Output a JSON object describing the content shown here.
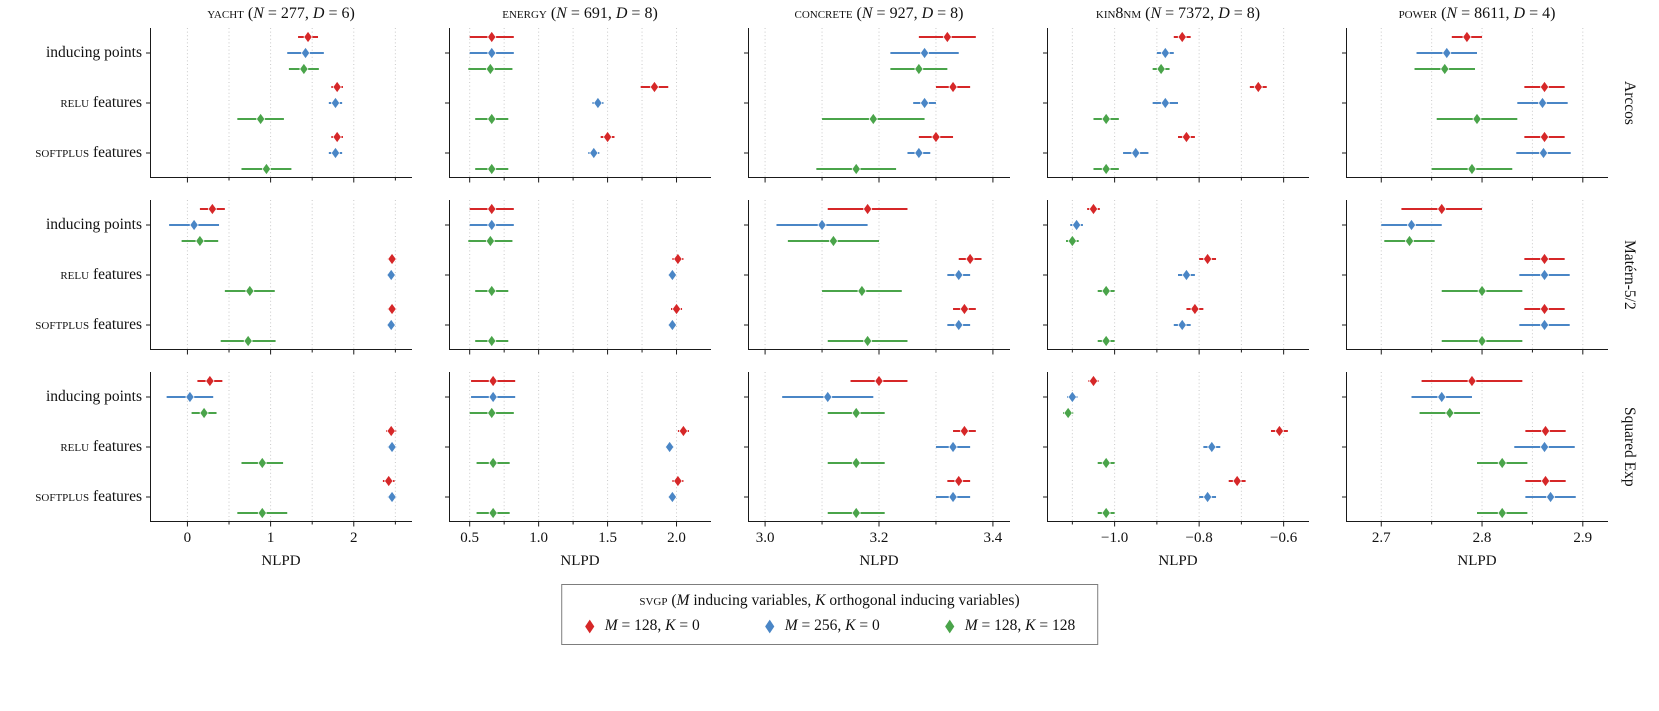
{
  "legend": {
    "title_sc": "svgp",
    "title_rest": " (M inducing variables, K orthogonal inducing variables)"
  },
  "chart_data": {
    "type": "scatter",
    "xlabel": "NLPD",
    "rows": [
      "Arccos",
      "Matérn-5/2",
      "Squared Exp"
    ],
    "group_labels": [
      [
        "",
        "inducing points"
      ],
      [
        "relu",
        " features"
      ],
      [
        "softplus",
        " features"
      ]
    ],
    "series": [
      {
        "name": "M = 128, K = 0",
        "color": "#d62728"
      },
      {
        "name": "M = 256, K = 0",
        "color": "#4a86c6"
      },
      {
        "name": "M = 128, K = 128",
        "color": "#4aa44a"
      }
    ],
    "columns": [
      {
        "name": "yacht",
        "params": "(N = 277, D = 6)",
        "xlim": [
          -0.45,
          2.7
        ],
        "ticks": [
          0,
          1,
          2
        ],
        "tick_labels": [
          "0",
          "1",
          "2"
        ],
        "grid": [
          0,
          0.5,
          1,
          1.5,
          2,
          2.5
        ]
      },
      {
        "name": "energy",
        "params": "(N = 691, D = 8)",
        "xlim": [
          0.35,
          2.25
        ],
        "ticks": [
          0.5,
          1.0,
          1.5,
          2.0
        ],
        "tick_labels": [
          "0.5",
          "1.0",
          "1.5",
          "2.0"
        ],
        "grid": [
          0.5,
          0.75,
          1.0,
          1.25,
          1.5,
          1.75,
          2.0
        ]
      },
      {
        "name": "concrete",
        "params": "(N = 927, D = 8)",
        "xlim": [
          2.97,
          3.43
        ],
        "ticks": [
          3.0,
          3.2,
          3.4
        ],
        "tick_labels": [
          "3.0",
          "3.2",
          "3.4"
        ],
        "grid": [
          3.0,
          3.1,
          3.2,
          3.3,
          3.4
        ]
      },
      {
        "name": "kin8nm",
        "params": "(N = 7372, D = 8)",
        "xlim": [
          -1.16,
          -0.54
        ],
        "ticks": [
          -1.0,
          -0.8,
          -0.6
        ],
        "tick_labels": [
          "−1.0",
          "−0.8",
          "−0.6"
        ],
        "grid": [
          -1.1,
          -1.0,
          -0.9,
          -0.8,
          -0.7,
          -0.6
        ]
      },
      {
        "name": "power",
        "params": "(N = 8611, D = 4)",
        "xlim": [
          2.665,
          2.925
        ],
        "ticks": [
          2.7,
          2.8,
          2.9
        ],
        "tick_labels": [
          "2.7",
          "2.8",
          "2.9"
        ],
        "grid": [
          2.7,
          2.75,
          2.8,
          2.85,
          2.9
        ]
      }
    ],
    "panels": [
      [
        [
          [
            [
              1.45,
              0.12
            ],
            [
              1.42,
              0.22
            ],
            [
              1.4,
              0.18
            ]
          ],
          [
            [
              1.8,
              0.07
            ],
            [
              1.78,
              0.08
            ],
            [
              0.88,
              0.28
            ]
          ],
          [
            [
              1.8,
              0.07
            ],
            [
              1.78,
              0.08
            ],
            [
              0.95,
              0.3
            ]
          ]
        ],
        [
          [
            [
              0.66,
              0.16
            ],
            [
              0.66,
              0.16
            ],
            [
              0.65,
              0.16
            ]
          ],
          [
            [
              1.84,
              0.1
            ],
            [
              1.43,
              0.04
            ],
            [
              0.66,
              0.12
            ]
          ],
          [
            [
              1.5,
              0.05
            ],
            [
              1.4,
              0.04
            ],
            [
              0.66,
              0.12
            ]
          ]
        ],
        [
          [
            [
              3.32,
              0.05
            ],
            [
              3.28,
              0.06
            ],
            [
              3.27,
              0.05
            ]
          ],
          [
            [
              3.33,
              0.03
            ],
            [
              3.28,
              0.02
            ],
            [
              3.19,
              0.09
            ]
          ],
          [
            [
              3.3,
              0.03
            ],
            [
              3.27,
              0.02
            ],
            [
              3.16,
              0.07
            ]
          ]
        ],
        [
          [
            [
              -0.84,
              0.02
            ],
            [
              -0.88,
              0.02
            ],
            [
              -0.89,
              0.02
            ]
          ],
          [
            [
              -0.66,
              0.02
            ],
            [
              -0.88,
              0.03
            ],
            [
              -1.02,
              0.03
            ]
          ],
          [
            [
              -0.83,
              0.02
            ],
            [
              -0.95,
              0.03
            ],
            [
              -1.02,
              0.03
            ]
          ]
        ],
        [
          [
            [
              2.785,
              0.015
            ],
            [
              2.765,
              0.03
            ],
            [
              2.763,
              0.03
            ]
          ],
          [
            [
              2.862,
              0.02
            ],
            [
              2.86,
              0.025
            ],
            [
              2.795,
              0.04
            ]
          ],
          [
            [
              2.862,
              0.02
            ],
            [
              2.861,
              0.027
            ],
            [
              2.79,
              0.04
            ]
          ]
        ]
      ],
      [
        [
          [
            [
              0.3,
              0.15
            ],
            [
              0.08,
              0.3
            ],
            [
              0.15,
              0.22
            ]
          ],
          [
            [
              2.46,
              0.05
            ],
            [
              2.45,
              0.05
            ],
            [
              0.75,
              0.3
            ]
          ],
          [
            [
              2.46,
              0.05
            ],
            [
              2.45,
              0.05
            ],
            [
              0.73,
              0.33
            ]
          ]
        ],
        [
          [
            [
              0.66,
              0.16
            ],
            [
              0.66,
              0.16
            ],
            [
              0.65,
              0.16
            ]
          ],
          [
            [
              2.01,
              0.04
            ],
            [
              1.97,
              0.03
            ],
            [
              0.66,
              0.12
            ]
          ],
          [
            [
              2.0,
              0.04
            ],
            [
              1.97,
              0.03
            ],
            [
              0.66,
              0.12
            ]
          ]
        ],
        [
          [
            [
              3.18,
              0.07
            ],
            [
              3.1,
              0.08
            ],
            [
              3.12,
              0.08
            ]
          ],
          [
            [
              3.36,
              0.02
            ],
            [
              3.34,
              0.02
            ],
            [
              3.17,
              0.07
            ]
          ],
          [
            [
              3.35,
              0.02
            ],
            [
              3.34,
              0.02
            ],
            [
              3.18,
              0.07
            ]
          ]
        ],
        [
          [
            [
              -1.05,
              0.015
            ],
            [
              -1.09,
              0.015
            ],
            [
              -1.1,
              0.015
            ]
          ],
          [
            [
              -0.78,
              0.02
            ],
            [
              -0.83,
              0.02
            ],
            [
              -1.02,
              0.02
            ]
          ],
          [
            [
              -0.81,
              0.02
            ],
            [
              -0.84,
              0.02
            ],
            [
              -1.02,
              0.02
            ]
          ]
        ],
        [
          [
            [
              2.76,
              0.04
            ],
            [
              2.73,
              0.03
            ],
            [
              2.728,
              0.025
            ]
          ],
          [
            [
              2.862,
              0.02
            ],
            [
              2.862,
              0.025
            ],
            [
              2.8,
              0.04
            ]
          ],
          [
            [
              2.862,
              0.02
            ],
            [
              2.862,
              0.025
            ],
            [
              2.8,
              0.04
            ]
          ]
        ]
      ],
      [
        [
          [
            [
              0.27,
              0.15
            ],
            [
              0.03,
              0.28
            ],
            [
              0.2,
              0.15
            ]
          ],
          [
            [
              2.45,
              0.06
            ],
            [
              2.46,
              0.05
            ],
            [
              0.9,
              0.25
            ]
          ],
          [
            [
              2.42,
              0.07
            ],
            [
              2.46,
              0.05
            ],
            [
              0.9,
              0.3
            ]
          ]
        ],
        [
          [
            [
              0.67,
              0.16
            ],
            [
              0.67,
              0.16
            ],
            [
              0.66,
              0.16
            ]
          ],
          [
            [
              2.05,
              0.04
            ],
            [
              1.95,
              0.03
            ],
            [
              0.67,
              0.12
            ]
          ],
          [
            [
              2.01,
              0.04
            ],
            [
              1.97,
              0.03
            ],
            [
              0.67,
              0.12
            ]
          ]
        ],
        [
          [
            [
              3.2,
              0.05
            ],
            [
              3.11,
              0.08
            ],
            [
              3.16,
              0.05
            ]
          ],
          [
            [
              3.35,
              0.02
            ],
            [
              3.33,
              0.03
            ],
            [
              3.16,
              0.05
            ]
          ],
          [
            [
              3.34,
              0.02
            ],
            [
              3.33,
              0.03
            ],
            [
              3.16,
              0.05
            ]
          ]
        ],
        [
          [
            [
              -1.05,
              0.012
            ],
            [
              -1.1,
              0.012
            ],
            [
              -1.11,
              0.012
            ]
          ],
          [
            [
              -0.61,
              0.02
            ],
            [
              -0.77,
              0.02
            ],
            [
              -1.02,
              0.02
            ]
          ],
          [
            [
              -0.71,
              0.02
            ],
            [
              -0.78,
              0.02
            ],
            [
              -1.02,
              0.02
            ]
          ]
        ],
        [
          [
            [
              2.79,
              0.05
            ],
            [
              2.76,
              0.03
            ],
            [
              2.768,
              0.03
            ]
          ],
          [
            [
              2.863,
              0.02
            ],
            [
              2.862,
              0.03
            ],
            [
              2.82,
              0.025
            ]
          ],
          [
            [
              2.863,
              0.02
            ],
            [
              2.868,
              0.025
            ],
            [
              2.82,
              0.025
            ]
          ]
        ]
      ]
    ]
  }
}
